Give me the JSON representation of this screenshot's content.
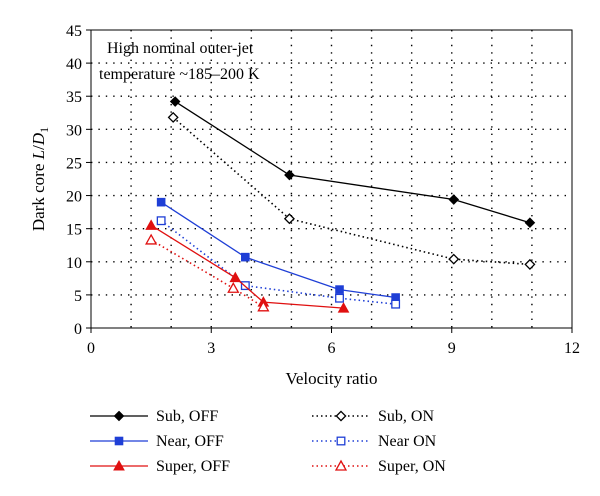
{
  "chart_data": {
    "type": "line",
    "xlabel": "Velocity ratio",
    "ylabel_main": "Dark core ",
    "ylabel_italic": "L",
    "ylabel_slash": "/",
    "ylabel_d": "D",
    "ylabel_sub": "1",
    "xlim": [
      0,
      12
    ],
    "ylim": [
      0,
      45
    ],
    "xticks": [
      0,
      3,
      6,
      9,
      12
    ],
    "yticks": [
      0,
      5,
      10,
      15,
      20,
      25,
      30,
      35,
      40,
      45
    ],
    "grid": "dotted",
    "annotation_line1": "High nominal outer-jet",
    "annotation_line2": "temperature ~185–200 K",
    "legend_position": "bottom",
    "series": [
      {
        "name": "Sub, OFF",
        "color": "#000000",
        "dash": "solid",
        "marker": "diamond-filled",
        "x": [
          2.1,
          4.95,
          9.05,
          10.95
        ],
        "y": [
          34.2,
          23.1,
          19.4,
          15.9
        ]
      },
      {
        "name": "Sub, ON",
        "color": "#000000",
        "dash": "dotted",
        "marker": "diamond-open",
        "x": [
          2.05,
          4.95,
          9.05,
          10.95
        ],
        "y": [
          31.8,
          16.5,
          10.4,
          9.6
        ]
      },
      {
        "name": "Near, OFF",
        "color": "#1f3fd6",
        "dash": "solid",
        "marker": "square-filled",
        "x": [
          1.75,
          3.85,
          6.2,
          7.6
        ],
        "y": [
          19.0,
          10.7,
          5.8,
          4.6
        ]
      },
      {
        "name": "Near ON",
        "color": "#1f3fd6",
        "dash": "dotted",
        "marker": "square-open",
        "x": [
          1.75,
          3.85,
          6.2,
          7.6
        ],
        "y": [
          16.2,
          6.4,
          4.5,
          3.6
        ]
      },
      {
        "name": "Super, OFF",
        "color": "#e01010",
        "dash": "solid",
        "marker": "triangle-filled",
        "x": [
          1.5,
          3.6,
          4.3,
          6.3
        ],
        "y": [
          15.5,
          7.6,
          3.9,
          3.0
        ]
      },
      {
        "name": "Super, ON",
        "color": "#e01010",
        "dash": "dotted",
        "marker": "triangle-open",
        "x": [
          1.5,
          3.55,
          4.3
        ],
        "y": [
          13.3,
          6.0,
          3.2
        ]
      }
    ]
  }
}
